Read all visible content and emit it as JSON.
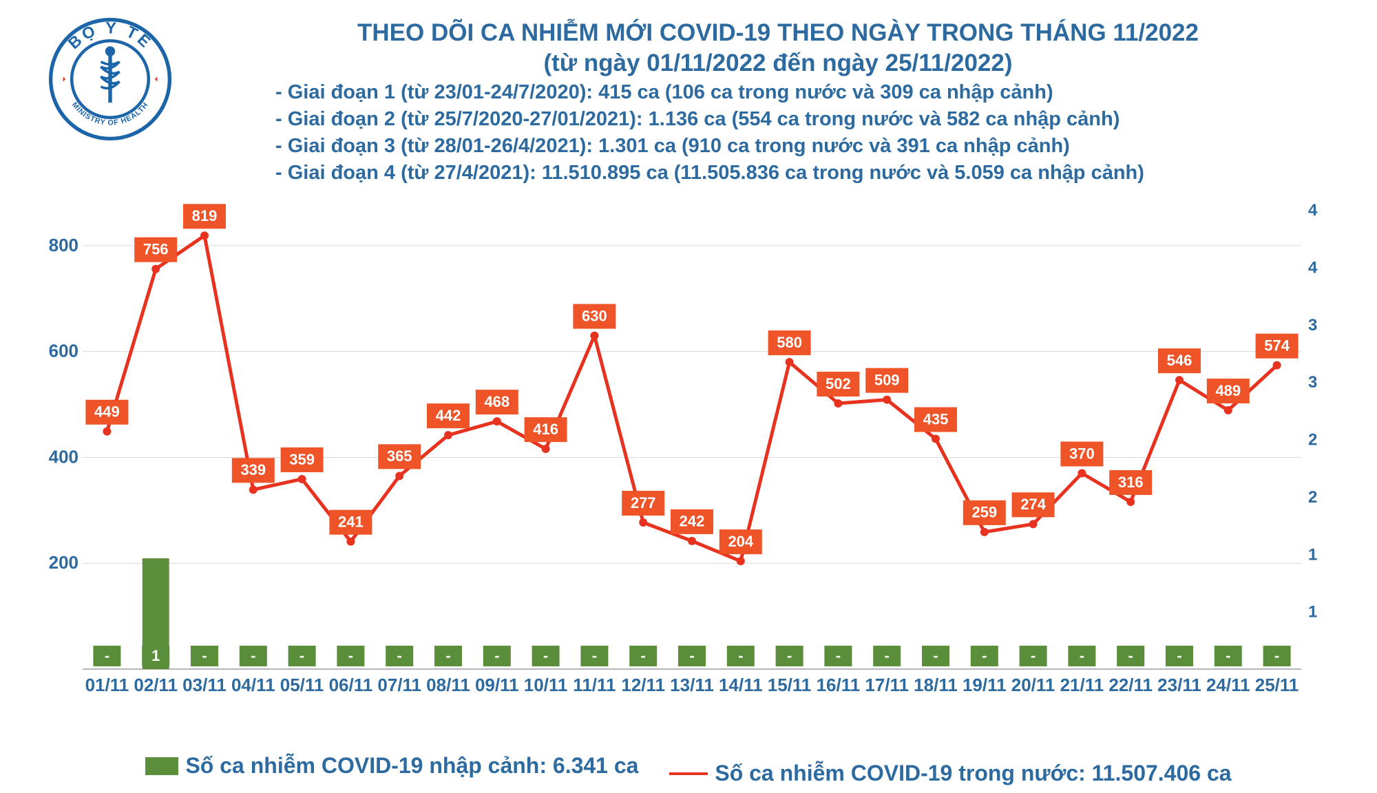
{
  "title_line1": "THEO DÕI CA NHIỄM MỚI COVID-19 THEO NGÀY TRONG THÁNG 11/2022",
  "title_line2": "(từ ngày 01/11/2022 đến ngày 25/11/2022)",
  "phases": [
    "- Giai đoạn 1 (từ 23/01-24/7/2020): 415 ca (106 ca trong nước và 309 ca nhập cảnh)",
    "- Giai đoạn 2 (từ 25/7/2020-27/01/2021): 1.136 ca (554 ca trong nước và 582 ca nhập cảnh)",
    "- Giai đoạn 3 (từ 28/01-26/4/2021): 1.301 ca (910 ca trong nước và 391 ca nhập cảnh)",
    "- Giai đoạn 4 (từ 27/4/2021): 11.510.895 ca (11.505.836 ca trong nước và 5.059 ca nhập cảnh)"
  ],
  "legend": {
    "bar_label": "Số ca nhiễm COVID-19 nhập cảnh: 6.341 ca",
    "line_label": "Số ca nhiễm COVID-19 trong nước: 11.507.406 ca"
  },
  "chart": {
    "type": "bar+line",
    "categories": [
      "01/11",
      "02/11",
      "03/11",
      "04/11",
      "05/11",
      "06/11",
      "07/11",
      "08/11",
      "09/11",
      "10/11",
      "11/11",
      "12/11",
      "13/11",
      "14/11",
      "15/11",
      "16/11",
      "17/11",
      "18/11",
      "19/11",
      "20/11",
      "21/11",
      "22/11",
      "23/11",
      "24/11",
      "25/11"
    ],
    "bar_values": [
      0,
      1,
      0,
      0,
      0,
      0,
      0,
      0,
      0,
      0,
      0,
      0,
      0,
      0,
      0,
      0,
      0,
      0,
      0,
      0,
      0,
      0,
      0,
      0,
      0
    ],
    "bar_labels": [
      "-",
      "1",
      "-",
      "-",
      "-",
      "-",
      "-",
      "-",
      "-",
      "-",
      "-",
      "-",
      "-",
      "-",
      "-",
      "-",
      "-",
      "-",
      "-",
      "-",
      "-",
      "-",
      "-",
      "-",
      "-"
    ],
    "line_values": [
      449,
      756,
      819,
      339,
      359,
      241,
      365,
      442,
      468,
      416,
      630,
      277,
      242,
      204,
      580,
      502,
      509,
      435,
      259,
      274,
      370,
      316,
      546,
      489,
      574
    ],
    "bar_color": "#5a8e3a",
    "line_color": "#e83220",
    "marker_color": "#e83220",
    "label_box_color": "#ee5428",
    "label_text_color": "#ffffff",
    "grid_color": "#d9d9d9",
    "axis_line_color": "#b5b5b5",
    "text_color": "#2c6aa0",
    "background_color": "#ffffff",
    "y_left": {
      "min": 0,
      "max": 900,
      "ticks": [
        200,
        400,
        600,
        800
      ]
    },
    "y_right": {
      "min": 0,
      "max": 4.3,
      "ticks": [
        1,
        1,
        2,
        2,
        3,
        3,
        4,
        4
      ]
    },
    "line_width": 5,
    "marker_radius": 6,
    "bar_width_ratio": 0.55,
    "label_box_w": 62,
    "label_box_h": 36,
    "title_fontsize": 35,
    "phase_fontsize": 29,
    "axis_fontsize": 26,
    "datalabel_fontsize": 22
  },
  "logo": {
    "outer_text_top": "BỘ Y TẾ",
    "outer_text_bottom": "MINISTRY OF HEALTH",
    "ring_color": "#1c65a9",
    "inner_bg": "#ffffff",
    "symbol_color": "#1c65a9",
    "star_color": "#e83220"
  }
}
